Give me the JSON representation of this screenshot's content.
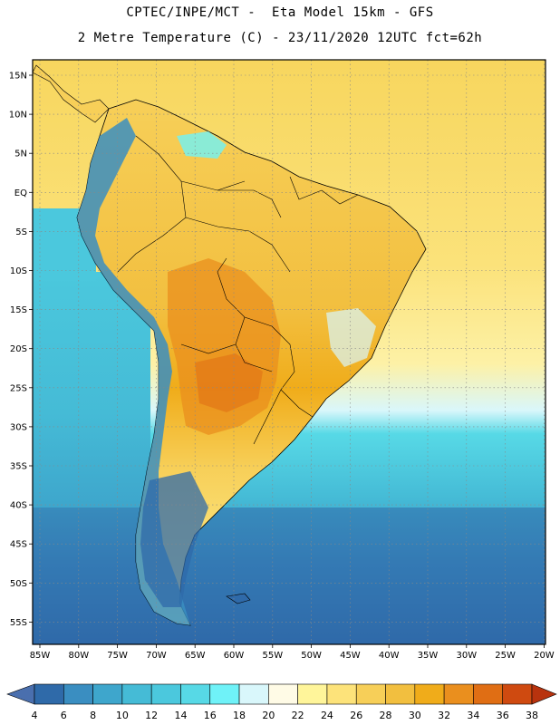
{
  "header": {
    "line1": "CPTEC/INPE/MCT -  Eta Model 15km - GFS",
    "line2": "2 Metre Temperature (C) - 23/11/2020 12UTC fct=62h"
  },
  "axes": {
    "lat_labels": [
      "15N",
      "10N",
      "5N",
      "EQ",
      "5S",
      "10S",
      "15S",
      "20S",
      "25S",
      "30S",
      "35S",
      "40S",
      "45S",
      "50S",
      "55S"
    ],
    "lon_labels": [
      "85W",
      "80W",
      "75W",
      "70W",
      "65W",
      "60W",
      "55W",
      "50W",
      "45W",
      "40W",
      "35W",
      "30W",
      "25W",
      "20W"
    ]
  },
  "legend": {
    "values": [
      "4",
      "6",
      "8",
      "10",
      "12",
      "14",
      "16",
      "18",
      "20",
      "22",
      "24",
      "26",
      "28",
      "30",
      "32",
      "34",
      "36",
      "38"
    ],
    "colors": [
      "#4a6fae",
      "#2f6aa9",
      "#3a8ec1",
      "#3ea6cc",
      "#45bbd6",
      "#4bc8dd",
      "#57d9e6",
      "#6ff2f8",
      "#d9f7fb",
      "#fffbe6",
      "#fff59a",
      "#fde37a",
      "#f7cf58",
      "#f2bf3f",
      "#f0ac1a",
      "#ea8f1e",
      "#e06e14",
      "#cf4a10",
      "#b8330e"
    ]
  },
  "colors": {
    "ocean_north": "#f7d65e",
    "ocean_mid": "#fdeb8a",
    "ocean_south": "#45bbd6",
    "ocean_far_south": "#2f6aa9",
    "land_warm": "#f2bf3f",
    "land_hot": "#ea8f1e",
    "andes": "#3a8ec1"
  }
}
